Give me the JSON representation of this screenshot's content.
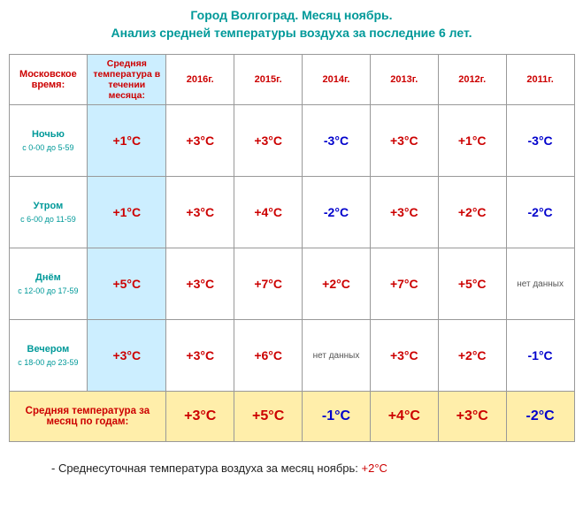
{
  "title": {
    "line1": "Город Волгоград. Месяц ноябрь.",
    "line2": "Анализ средней температуры воздуха за последние 6 лет."
  },
  "headers": {
    "moscow_time": "Московское время:",
    "avg_month": "Средняя температура в течении месяца:",
    "years": [
      "2016г.",
      "2015г.",
      "2014г.",
      "2013г.",
      "2012г.",
      "2011г."
    ]
  },
  "rows": [
    {
      "label": "Ночью",
      "sublabel": "с 0-00 до 5-59",
      "avg": {
        "text": "+1°C",
        "sign": "pos"
      },
      "cells": [
        {
          "text": "+3°C",
          "sign": "pos"
        },
        {
          "text": "+3°C",
          "sign": "pos"
        },
        {
          "text": "-3°C",
          "sign": "neg"
        },
        {
          "text": "+3°C",
          "sign": "pos"
        },
        {
          "text": "+1°C",
          "sign": "pos"
        },
        {
          "text": "-3°C",
          "sign": "neg"
        }
      ]
    },
    {
      "label": "Утром",
      "sublabel": "с 6-00 до 11-59",
      "avg": {
        "text": "+1°C",
        "sign": "pos"
      },
      "cells": [
        {
          "text": "+3°C",
          "sign": "pos"
        },
        {
          "text": "+4°C",
          "sign": "pos"
        },
        {
          "text": "-2°C",
          "sign": "neg"
        },
        {
          "text": "+3°C",
          "sign": "pos"
        },
        {
          "text": "+2°C",
          "sign": "pos"
        },
        {
          "text": "-2°C",
          "sign": "neg"
        }
      ]
    },
    {
      "label": "Днём",
      "sublabel": "с 12-00 до 17-59",
      "avg": {
        "text": "+5°C",
        "sign": "pos"
      },
      "cells": [
        {
          "text": "+3°C",
          "sign": "pos"
        },
        {
          "text": "+7°C",
          "sign": "pos"
        },
        {
          "text": "+2°C",
          "sign": "pos"
        },
        {
          "text": "+7°C",
          "sign": "pos"
        },
        {
          "text": "+5°C",
          "sign": "pos"
        },
        {
          "text": "нет данных",
          "sign": "none"
        }
      ]
    },
    {
      "label": "Вечером",
      "sublabel": "с 18-00 до 23-59",
      "avg": {
        "text": "+3°C",
        "sign": "pos"
      },
      "cells": [
        {
          "text": "+3°C",
          "sign": "pos"
        },
        {
          "text": "+6°C",
          "sign": "pos"
        },
        {
          "text": "нет данных",
          "sign": "none"
        },
        {
          "text": "+3°C",
          "sign": "pos"
        },
        {
          "text": "+2°C",
          "sign": "pos"
        },
        {
          "text": "-1°C",
          "sign": "neg"
        }
      ]
    }
  ],
  "footer": {
    "label": "Средняя температура за месяц по годам:",
    "cells": [
      {
        "text": "+3°C",
        "sign": "pos"
      },
      {
        "text": "+5°C",
        "sign": "pos"
      },
      {
        "text": "-1°C",
        "sign": "neg"
      },
      {
        "text": "+4°C",
        "sign": "pos"
      },
      {
        "text": "+3°C",
        "sign": "pos"
      },
      {
        "text": "-2°C",
        "sign": "neg"
      }
    ]
  },
  "bottom_note": {
    "prefix": "- Среднесуточная температура воздуха за месяц ноябрь: ",
    "value": "+2°C"
  },
  "colors": {
    "title": "#009999",
    "header_red": "#cc0000",
    "avg_bg": "#cceeff",
    "footer_bg": "#ffeeaa",
    "pos": "#cc0000",
    "neg": "#0000cc",
    "border": "#999999"
  }
}
